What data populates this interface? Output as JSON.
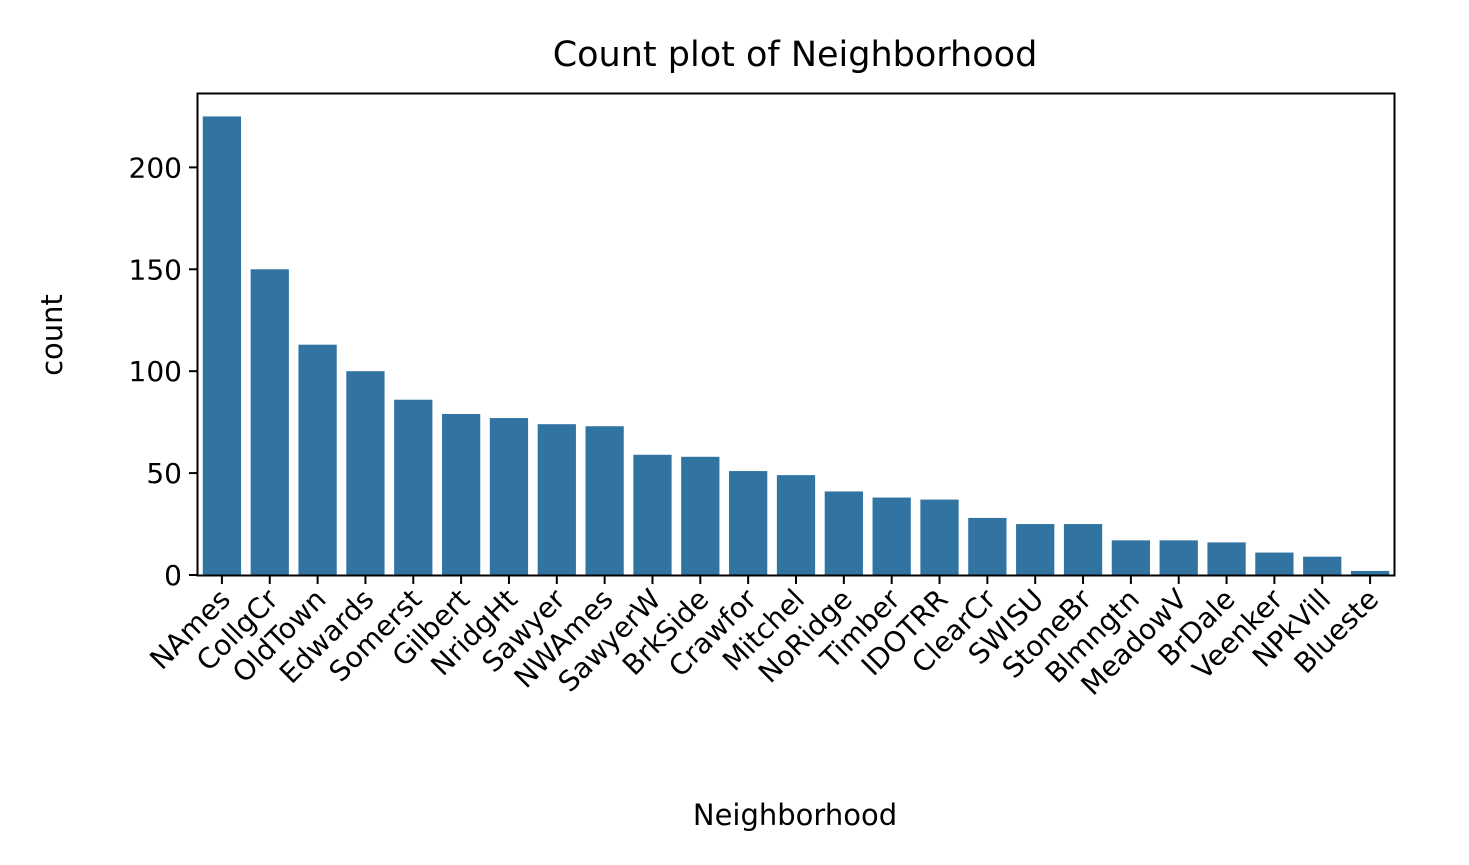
{
  "chart_data": {
    "type": "bar",
    "title": "Count plot of Neighborhood",
    "xlabel": "Neighborhood",
    "ylabel": "count",
    "ylim": [
      0,
      236
    ],
    "yticks": [
      0,
      50,
      100,
      150,
      200
    ],
    "grid": false,
    "legend": "none",
    "bar_color": "#3274a1",
    "categories": [
      "NAmes",
      "CollgCr",
      "OldTown",
      "Edwards",
      "Somerst",
      "Gilbert",
      "NridgHt",
      "Sawyer",
      "NWAmes",
      "SawyerW",
      "BrkSide",
      "Crawfor",
      "Mitchel",
      "NoRidge",
      "Timber",
      "IDOTRR",
      "ClearCr",
      "SWISU",
      "StoneBr",
      "Blmngtn",
      "MeadowV",
      "BrDale",
      "Veenker",
      "NPkVill",
      "Blueste"
    ],
    "values": [
      225,
      150,
      113,
      100,
      86,
      79,
      77,
      74,
      73,
      59,
      58,
      51,
      49,
      41,
      38,
      37,
      28,
      25,
      25,
      17,
      17,
      16,
      11,
      9,
      2
    ]
  }
}
